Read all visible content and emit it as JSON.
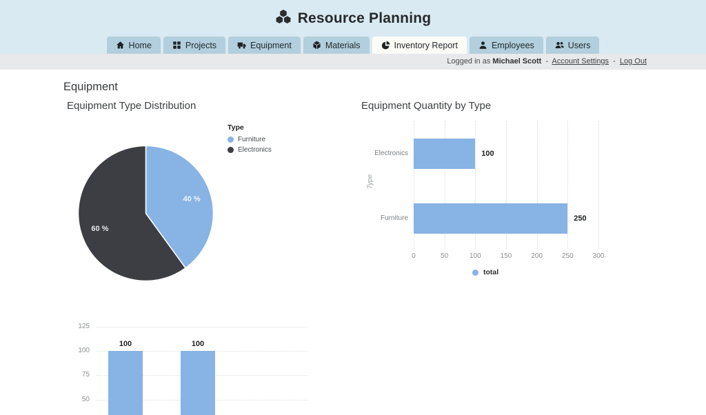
{
  "header": {
    "title": "Resource Planning",
    "icon": "cubes-icon"
  },
  "nav": {
    "tabs": [
      {
        "label": "Home",
        "icon": "home-icon",
        "active": false
      },
      {
        "label": "Projects",
        "icon": "projects-grid-icon",
        "active": false
      },
      {
        "label": "Equipment",
        "icon": "truck-icon",
        "active": false
      },
      {
        "label": "Materials",
        "icon": "box-icon",
        "active": false
      },
      {
        "label": "Inventory Report",
        "icon": "pie-chart-icon",
        "active": true
      },
      {
        "label": "Employees",
        "icon": "user-icon",
        "active": false
      },
      {
        "label": "Users",
        "icon": "users-icon",
        "active": false
      }
    ]
  },
  "session": {
    "prefix": "Logged in as",
    "user": "Michael Scott",
    "separator": "-",
    "links": [
      {
        "label": "Account Settings"
      },
      {
        "label": "Log Out"
      }
    ]
  },
  "page": {
    "heading": "Equipment"
  },
  "colors": {
    "accent_blue": "#87b3e5",
    "dark_slice": "#3d3e43",
    "header_bg": "#d9eaf2",
    "tab_bg": "#b2cfdd",
    "tab_active_bg": "#fcfcf7",
    "session_bar_bg": "#e8e9ea"
  },
  "chart_data": [
    {
      "type": "pie",
      "title": "Equipment Type Distribution",
      "legend_title": "Type",
      "legend_position": "right",
      "labels": [
        "Furniture",
        "Electronics"
      ],
      "values": [
        40,
        60
      ],
      "slice_labels": [
        "40 %",
        "60 %"
      ],
      "colors": [
        "#87b3e5",
        "#3d3e43"
      ]
    },
    {
      "type": "bar",
      "orientation": "horizontal",
      "title": "Equipment Quantity by Type",
      "ylabel": "Type",
      "categories": [
        "Electronics",
        "Furniture"
      ],
      "values": [
        100,
        250
      ],
      "bar_labels": [
        "100",
        "250"
      ],
      "xlim": [
        0,
        300
      ],
      "xticks": [
        0,
        50,
        100,
        150,
        200,
        250,
        300
      ],
      "grid": true,
      "series_name": "total",
      "legend_position": "bottom",
      "color": "#87b3e5"
    },
    {
      "type": "bar",
      "orientation": "vertical",
      "title": "",
      "values": [
        100,
        100
      ],
      "bar_labels": [
        "100",
        "100"
      ],
      "yticks": [
        125,
        100,
        75,
        50
      ],
      "grid": true,
      "color": "#87b3e5"
    }
  ]
}
